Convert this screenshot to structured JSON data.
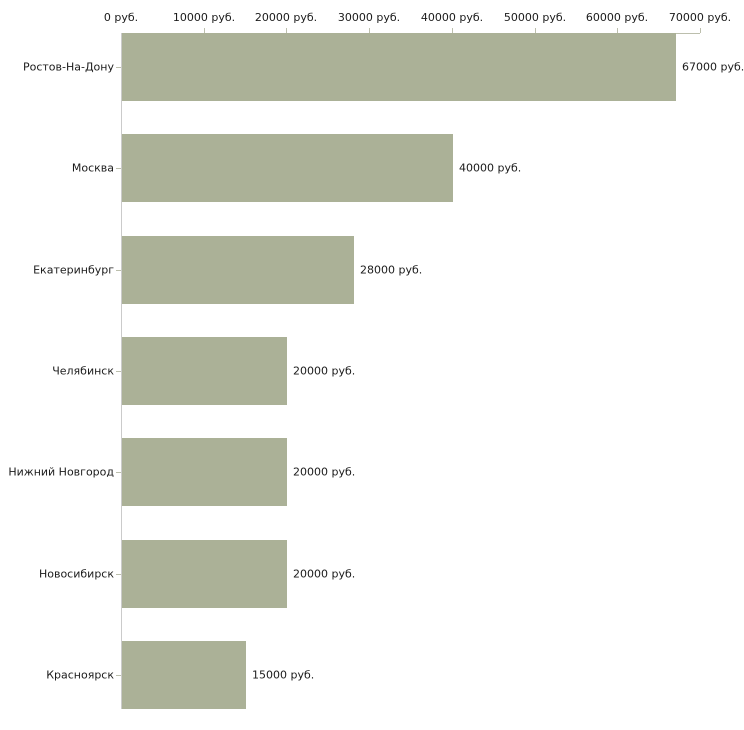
{
  "chart_data": {
    "type": "bar",
    "orientation": "horizontal",
    "title": "",
    "xlabel": "",
    "ylabel": "",
    "categories": [
      "Ростов-На-Дону",
      "Москва",
      "Екатеринбург",
      "Челябинск",
      "Нижний Новгород",
      "Новосибирск",
      "Красноярск"
    ],
    "values": [
      67000,
      40000,
      28000,
      20000,
      20000,
      20000,
      15000
    ],
    "value_labels": [
      "67000 руб.",
      "40000 руб.",
      "28000 руб.",
      "20000 руб.",
      "20000 руб.",
      "20000 руб.",
      "15000 руб."
    ],
    "x_ticks": [
      0,
      10000,
      20000,
      30000,
      40000,
      50000,
      60000,
      70000
    ],
    "x_tick_labels": [
      "0 руб.",
      "10000 руб.",
      "20000 руб.",
      "30000 руб.",
      "40000 руб.",
      "50000 руб.",
      "60000 руб.",
      "70000 руб."
    ],
    "xlim": [
      0,
      70000
    ],
    "grid": false,
    "legend": false,
    "colors": {
      "bar": "#abb197",
      "axis_line": "#bcbfad",
      "y_axis_line": "#cbcbcb",
      "text": "#1b1b1b",
      "background": "#ffffff"
    }
  }
}
